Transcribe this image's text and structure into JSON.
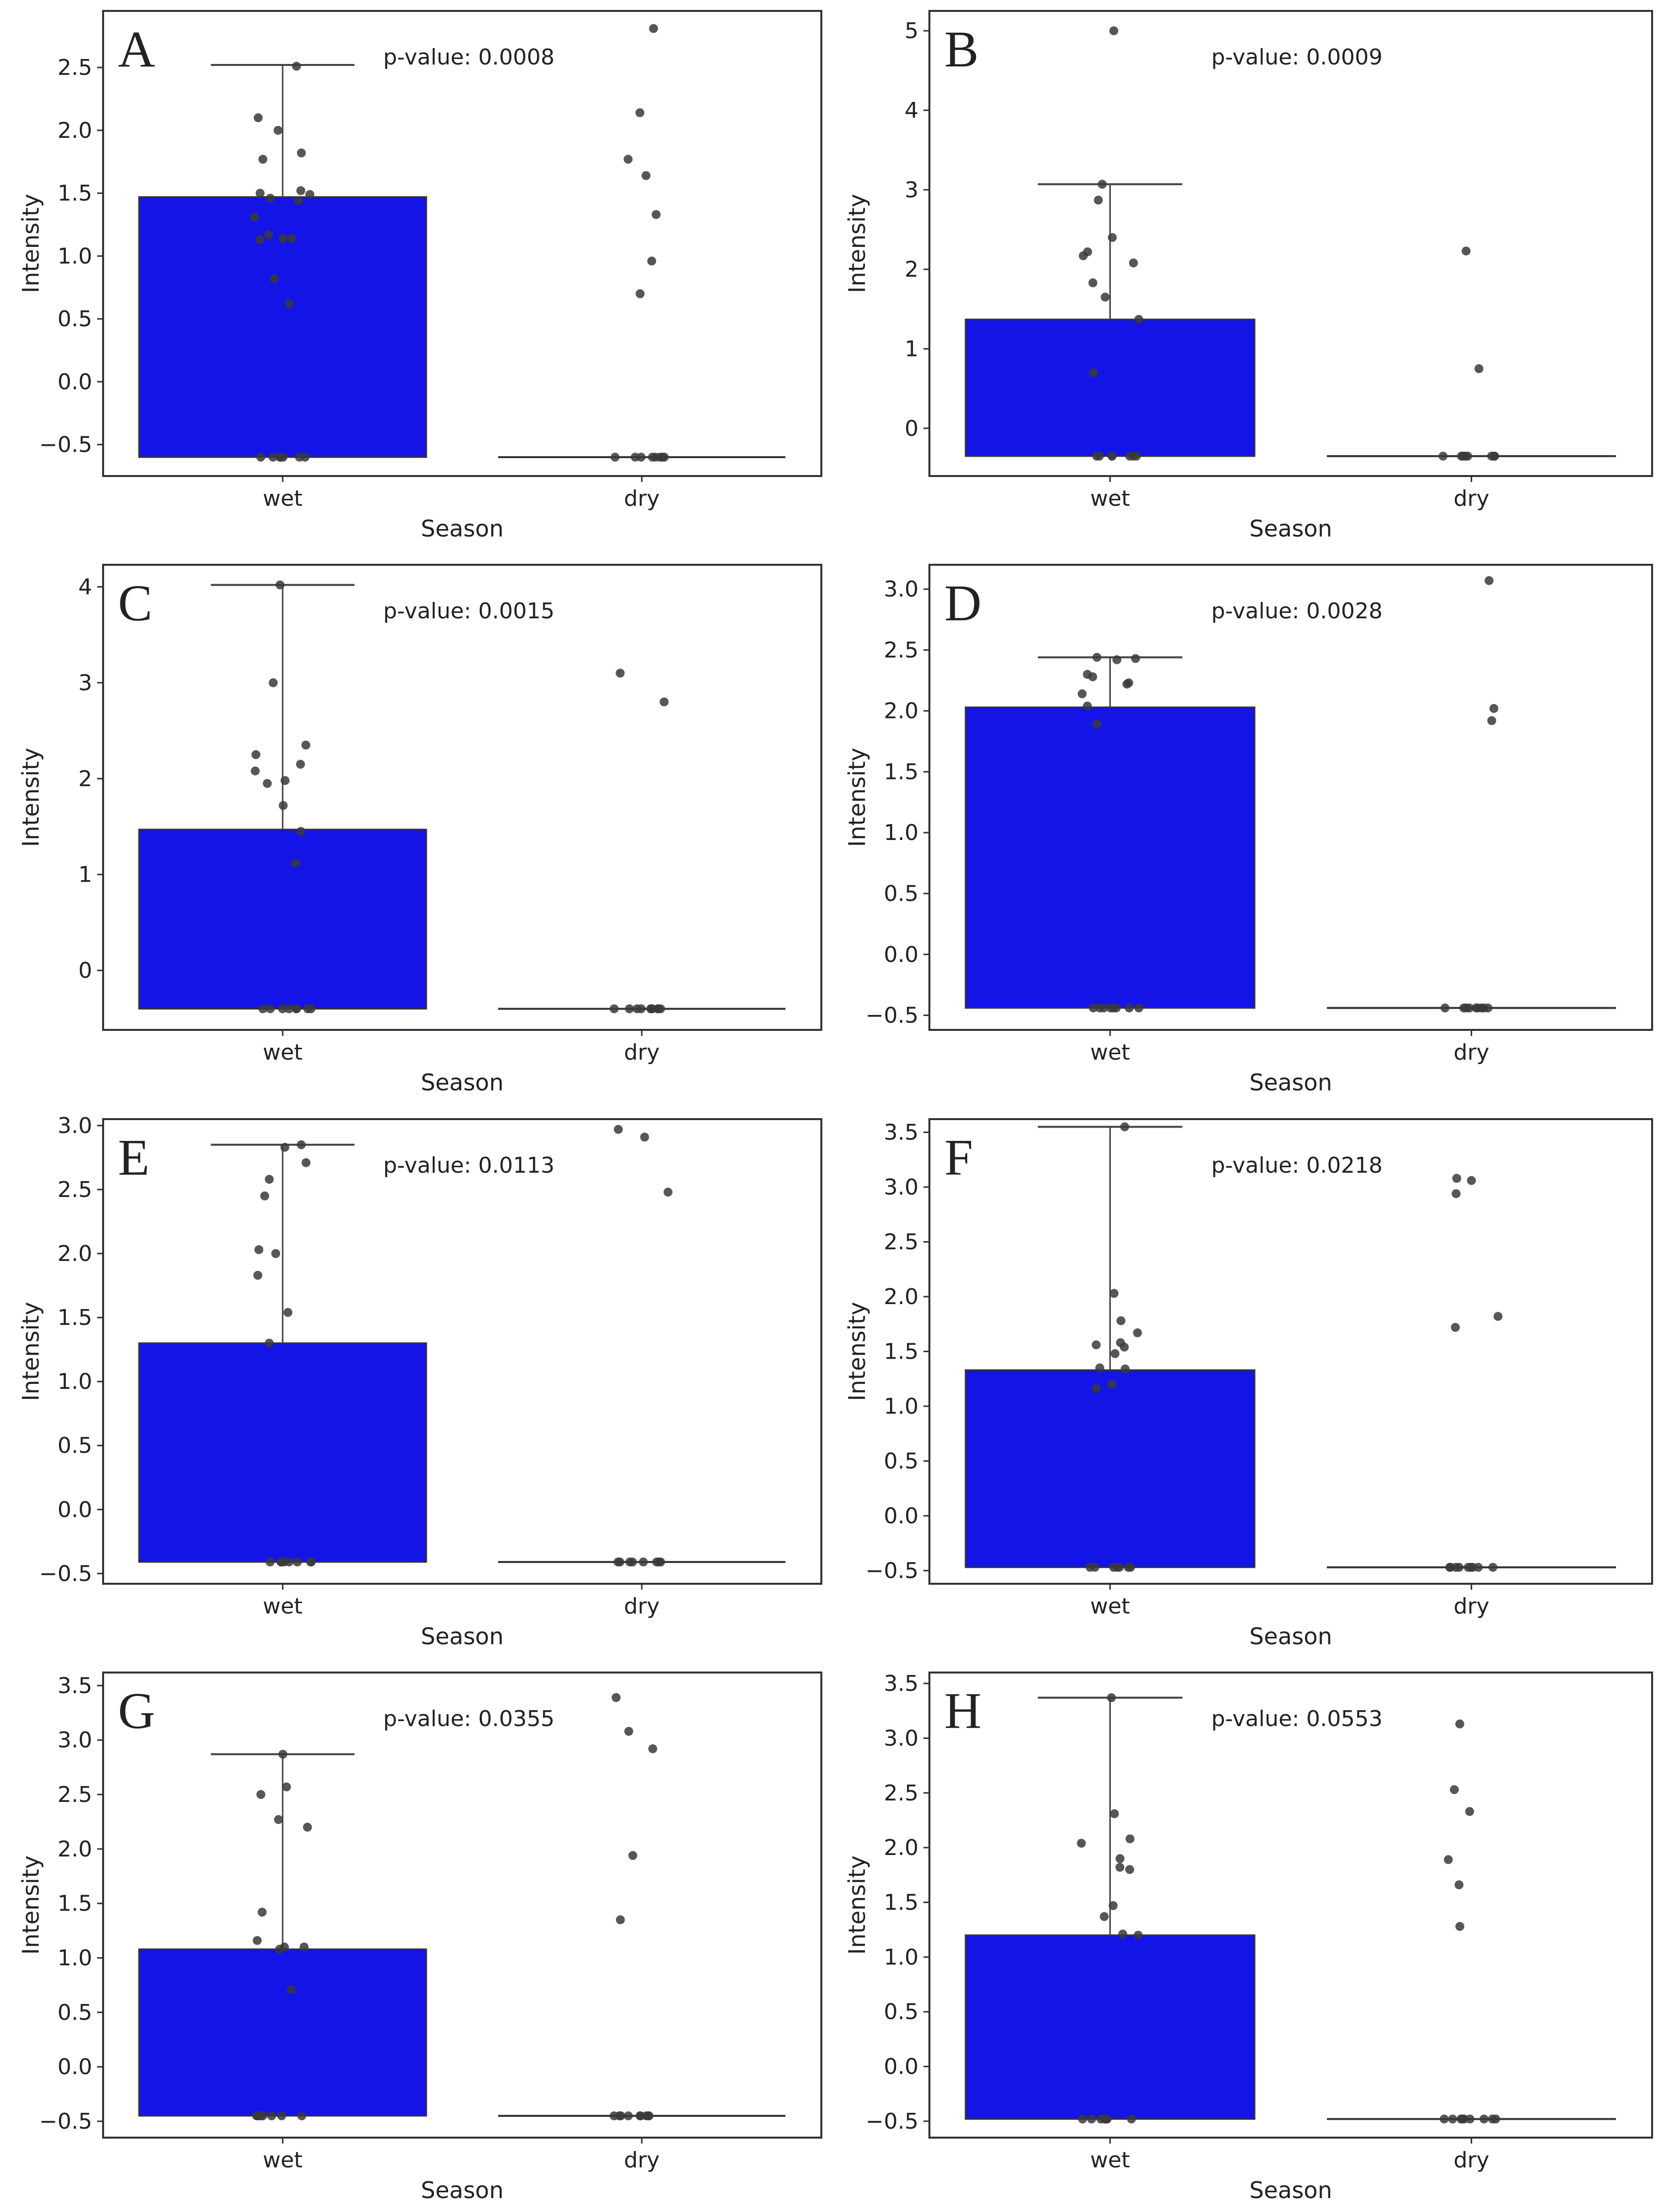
{
  "figure": {
    "accent_color": "#1414e6",
    "point_color": "#3a3a3a"
  },
  "chart_data": [
    {
      "panel": "A",
      "type": "bar",
      "title": "",
      "xlabel": "Season",
      "ylabel": "Intensity",
      "categories": [
        "wet",
        "dry"
      ],
      "pvalue_text": "p-value: 0.0008",
      "ylim": [
        -0.75,
        2.95
      ],
      "yticks": [
        -0.5,
        0.0,
        0.5,
        1.0,
        1.5,
        2.0,
        2.5
      ],
      "ytick_labels": [
        "−0.5",
        "0.0",
        "0.5",
        "1.0",
        "1.5",
        "2.0",
        "2.5"
      ],
      "bar_bottom": -0.6,
      "values": [
        1.47,
        -0.6
      ],
      "error_top": [
        2.52,
        null
      ],
      "points": {
        "wet": [
          2.51,
          2.1,
          2.0,
          1.82,
          1.77,
          1.52,
          1.5,
          1.49,
          1.46,
          1.44,
          1.31,
          1.17,
          1.14,
          1.14,
          1.13,
          0.82,
          0.62,
          -0.6,
          -0.6,
          -0.6,
          -0.6,
          -0.6,
          -0.6,
          -0.6
        ],
        "dry": [
          2.81,
          2.14,
          1.77,
          1.64,
          1.33,
          0.96,
          0.7,
          -0.6,
          -0.6,
          -0.6,
          -0.6,
          -0.6,
          -0.6,
          -0.6,
          -0.6
        ]
      }
    },
    {
      "panel": "B",
      "type": "bar",
      "title": "",
      "xlabel": "Season",
      "ylabel": "Intensity",
      "categories": [
        "wet",
        "dry"
      ],
      "pvalue_text": "p-value: 0.0009",
      "ylim": [
        -0.6,
        5.25
      ],
      "yticks": [
        0,
        1,
        2,
        3,
        4,
        5
      ],
      "ytick_labels": [
        "0",
        "1",
        "2",
        "3",
        "4",
        "5"
      ],
      "bar_bottom": -0.35,
      "values": [
        1.37,
        -0.35
      ],
      "error_top": [
        3.07,
        null
      ],
      "points": {
        "wet": [
          5.0,
          3.07,
          2.87,
          2.4,
          2.22,
          2.17,
          2.08,
          1.83,
          1.65,
          1.37,
          0.7,
          -0.35,
          -0.35,
          -0.35,
          -0.35,
          -0.35,
          -0.35,
          -0.35
        ],
        "dry": [
          2.23,
          0.75,
          -0.35,
          -0.35,
          -0.35,
          -0.35,
          -0.35,
          -0.35,
          -0.35,
          -0.35
        ]
      }
    },
    {
      "panel": "C",
      "type": "bar",
      "title": "",
      "xlabel": "Season",
      "ylabel": "Intensity",
      "categories": [
        "wet",
        "dry"
      ],
      "pvalue_text": "p-value: 0.0015",
      "ylim": [
        -0.62,
        4.23
      ],
      "yticks": [
        0,
        1,
        2,
        3,
        4
      ],
      "ytick_labels": [
        "0",
        "1",
        "2",
        "3",
        "4"
      ],
      "bar_bottom": -0.4,
      "values": [
        1.47,
        -0.4
      ],
      "error_top": [
        4.02,
        null
      ],
      "points": {
        "wet": [
          4.02,
          3.0,
          2.35,
          2.25,
          2.15,
          2.08,
          1.98,
          1.95,
          1.72,
          1.45,
          1.12,
          -0.4,
          -0.4,
          -0.4,
          -0.4,
          -0.4,
          -0.4,
          -0.4,
          -0.4
        ],
        "dry": [
          3.1,
          2.8,
          -0.4,
          -0.4,
          -0.4,
          -0.4,
          -0.4,
          -0.4,
          -0.4,
          -0.4,
          -0.4,
          -0.4
        ]
      }
    },
    {
      "panel": "D",
      "type": "bar",
      "title": "",
      "xlabel": "Season",
      "ylabel": "Intensity",
      "categories": [
        "wet",
        "dry"
      ],
      "pvalue_text": "p-value: 0.0028",
      "ylim": [
        -0.62,
        3.2
      ],
      "yticks": [
        -0.5,
        0.0,
        0.5,
        1.0,
        1.5,
        2.0,
        2.5,
        3.0
      ],
      "ytick_labels": [
        "−0.5",
        "0.0",
        "0.5",
        "1.0",
        "1.5",
        "2.0",
        "2.5",
        "3.0"
      ],
      "bar_bottom": -0.44,
      "values": [
        2.03,
        -0.44
      ],
      "error_top": [
        2.44,
        null
      ],
      "points": {
        "wet": [
          2.44,
          2.43,
          2.42,
          2.3,
          2.28,
          2.23,
          2.22,
          2.14,
          2.04,
          1.89,
          -0.44,
          -0.44,
          -0.44,
          -0.44,
          -0.44,
          -0.44,
          -0.44,
          -0.44
        ],
        "dry": [
          3.07,
          2.02,
          1.92,
          -0.44,
          -0.44,
          -0.44,
          -0.44,
          -0.44,
          -0.44,
          -0.44,
          -0.44,
          -0.44
        ]
      }
    },
    {
      "panel": "E",
      "type": "bar",
      "title": "",
      "xlabel": "Season",
      "ylabel": "Intensity",
      "categories": [
        "wet",
        "dry"
      ],
      "pvalue_text": "p-value: 0.0113",
      "ylim": [
        -0.58,
        3.05
      ],
      "yticks": [
        -0.5,
        0.0,
        0.5,
        1.0,
        1.5,
        2.0,
        2.5,
        3.0
      ],
      "ytick_labels": [
        "−0.5",
        "0.0",
        "0.5",
        "1.0",
        "1.5",
        "2.0",
        "2.5",
        "3.0"
      ],
      "bar_bottom": -0.41,
      "values": [
        1.3,
        -0.41
      ],
      "error_top": [
        2.85,
        null
      ],
      "points": {
        "wet": [
          2.85,
          2.83,
          2.71,
          2.58,
          2.45,
          2.03,
          2.0,
          1.83,
          1.54,
          1.3,
          -0.41,
          -0.41,
          -0.41,
          -0.41,
          -0.41,
          -0.41,
          -0.41,
          -0.41
        ],
        "dry": [
          2.97,
          2.91,
          2.48,
          -0.41,
          -0.41,
          -0.41,
          -0.41,
          -0.41,
          -0.41,
          -0.41,
          -0.41
        ]
      }
    },
    {
      "panel": "F",
      "type": "bar",
      "title": "",
      "xlabel": "Season",
      "ylabel": "Intensity",
      "categories": [
        "wet",
        "dry"
      ],
      "pvalue_text": "p-value: 0.0218",
      "ylim": [
        -0.62,
        3.62
      ],
      "yticks": [
        -0.5,
        0.0,
        0.5,
        1.0,
        1.5,
        2.0,
        2.5,
        3.0,
        3.5
      ],
      "ytick_labels": [
        "−0.5",
        "0.0",
        "0.5",
        "1.0",
        "1.5",
        "2.0",
        "2.5",
        "3.0",
        "3.5"
      ],
      "bar_bottom": -0.47,
      "values": [
        1.33,
        -0.47
      ],
      "error_top": [
        3.55,
        null
      ],
      "points": {
        "wet": [
          3.55,
          2.03,
          1.78,
          1.67,
          1.58,
          1.56,
          1.54,
          1.48,
          1.35,
          1.34,
          1.2,
          1.16,
          -0.47,
          -0.47,
          -0.47,
          -0.47,
          -0.47,
          -0.47,
          -0.47
        ],
        "dry": [
          3.08,
          3.06,
          2.94,
          1.82,
          1.72,
          -0.47,
          -0.47,
          -0.47,
          -0.47,
          -0.47,
          -0.47,
          -0.47,
          -0.47,
          -0.47
        ]
      }
    },
    {
      "panel": "G",
      "type": "bar",
      "title": "",
      "xlabel": "Season",
      "ylabel": "Intensity",
      "categories": [
        "wet",
        "dry"
      ],
      "pvalue_text": "p-value: 0.0355",
      "ylim": [
        -0.65,
        3.62
      ],
      "yticks": [
        -0.5,
        0.0,
        0.5,
        1.0,
        1.5,
        2.0,
        2.5,
        3.0,
        3.5
      ],
      "ytick_labels": [
        "−0.5",
        "0.0",
        "0.5",
        "1.0",
        "1.5",
        "2.0",
        "2.5",
        "3.0",
        "3.5"
      ],
      "bar_bottom": -0.45,
      "values": [
        1.08,
        -0.45
      ],
      "error_top": [
        2.87,
        null
      ],
      "points": {
        "wet": [
          2.87,
          2.57,
          2.5,
          2.27,
          2.2,
          1.42,
          1.16,
          1.1,
          1.1,
          1.08,
          0.71,
          -0.45,
          -0.45,
          -0.45,
          -0.45,
          -0.45,
          -0.45,
          -0.45,
          -0.45
        ],
        "dry": [
          3.39,
          3.08,
          2.92,
          1.94,
          1.35,
          -0.45,
          -0.45,
          -0.45,
          -0.45,
          -0.45,
          -0.45,
          -0.45,
          -0.45,
          -0.45
        ]
      }
    },
    {
      "panel": "H",
      "type": "bar",
      "title": "",
      "xlabel": "Season",
      "ylabel": "Intensity",
      "categories": [
        "wet",
        "dry"
      ],
      "pvalue_text": "p-value: 0.0553",
      "ylim": [
        -0.65,
        3.6
      ],
      "yticks": [
        -0.5,
        0.0,
        0.5,
        1.0,
        1.5,
        2.0,
        2.5,
        3.0,
        3.5
      ],
      "ytick_labels": [
        "−0.5",
        "0.0",
        "0.5",
        "1.0",
        "1.5",
        "2.0",
        "2.5",
        "3.0",
        "3.5"
      ],
      "bar_bottom": -0.48,
      "values": [
        1.2,
        -0.48
      ],
      "error_top": [
        3.37,
        null
      ],
      "points": {
        "wet": [
          3.37,
          2.31,
          2.08,
          2.04,
          1.9,
          1.82,
          1.8,
          1.47,
          1.37,
          1.21,
          1.2,
          -0.48,
          -0.48,
          -0.48,
          -0.48,
          -0.48,
          -0.48,
          -0.48,
          -0.48
        ],
        "dry": [
          3.13,
          2.53,
          2.33,
          1.89,
          1.66,
          1.28,
          -0.48,
          -0.48,
          -0.48,
          -0.48,
          -0.48,
          -0.48,
          -0.48,
          -0.48,
          -0.48
        ]
      }
    }
  ]
}
